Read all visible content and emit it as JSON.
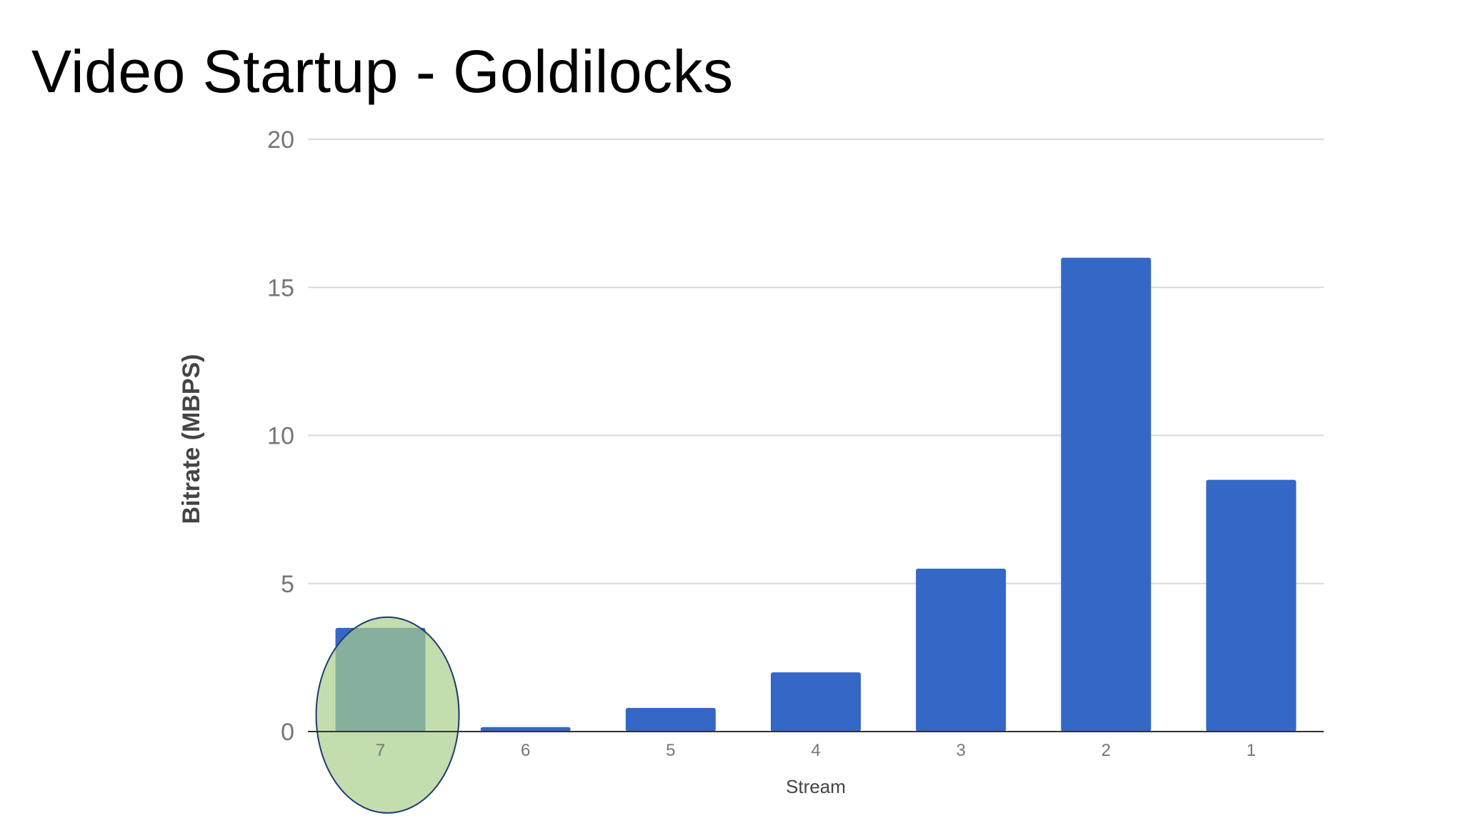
{
  "slide": {
    "title": "Video Startup - Goldilocks"
  },
  "chart_data": {
    "type": "bar",
    "categories": [
      "7",
      "6",
      "5",
      "4",
      "3",
      "2",
      "1"
    ],
    "values": [
      3.5,
      0.15,
      0.8,
      2.0,
      5.5,
      16.0,
      8.5
    ],
    "xlabel": "Stream",
    "ylabel": "Bitrate (MBPS)",
    "ylim": [
      0,
      20
    ],
    "yticks": [
      0,
      5,
      10,
      15,
      20
    ],
    "grid": true,
    "legend": "none",
    "colors": {
      "bar": "#3567c6",
      "highlight_fill": "#a9cf8c",
      "highlight_stroke": "#1f3a6e",
      "grid": "#d9d9d9",
      "baseline": "#333333"
    },
    "highlight": {
      "category": "7",
      "shape": "ellipse"
    }
  }
}
